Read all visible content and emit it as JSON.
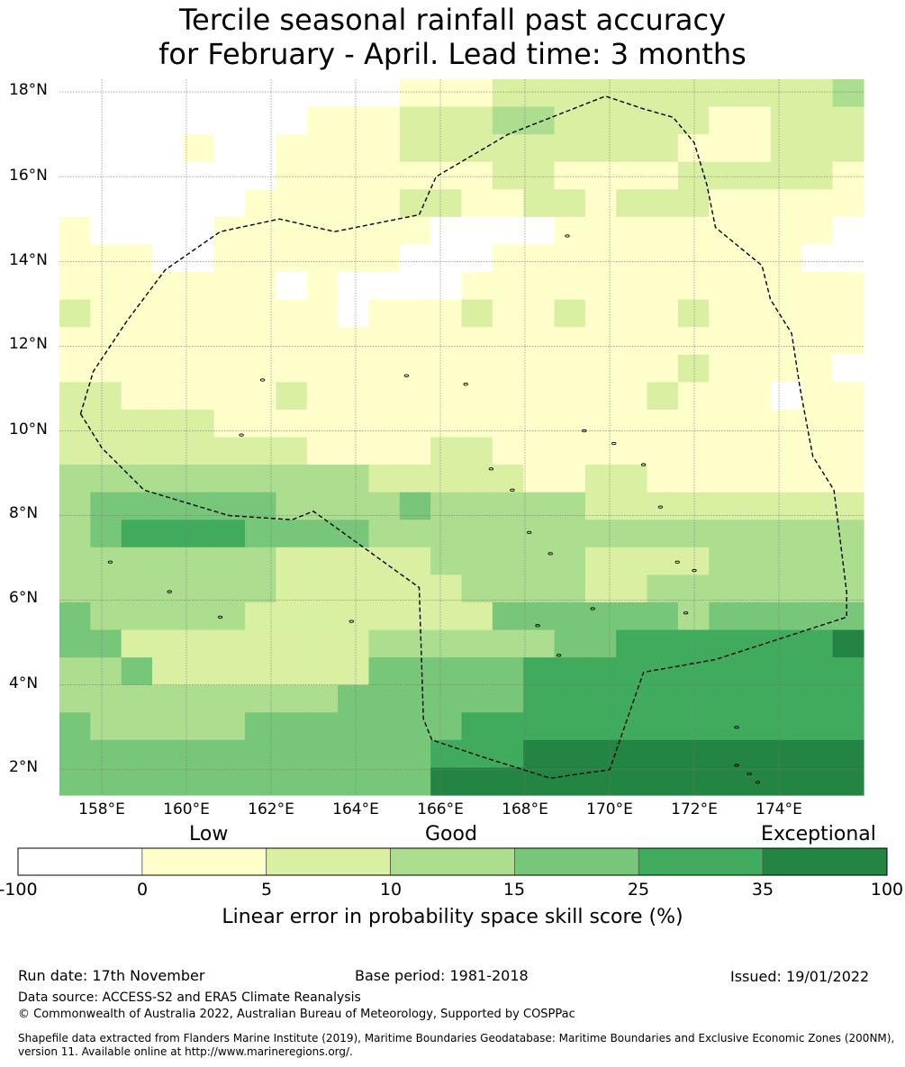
{
  "title": {
    "line1": "Tercile seasonal rainfall past accuracy",
    "line2": "for February - April. Lead time: 3 months"
  },
  "map": {
    "lat_labels": [
      "18°N",
      "16°N",
      "14°N",
      "12°N",
      "10°N",
      "8°N",
      "6°N",
      "4°N",
      "2°N"
    ],
    "lon_labels": [
      "158°E",
      "160°E",
      "162°E",
      "164°E",
      "166°E",
      "168°E",
      "170°E",
      "172°E",
      "174°E"
    ],
    "lon_range": [
      157.0,
      176.0
    ],
    "lat_range": [
      1.4,
      18.3
    ],
    "grid_rows_description": "skill category index per 0.55° cell, top row = north",
    "skill_grid": [
      "00000000000111222222222223",
      "00000000111222332222211222",
      "00001001111222222222111222",
      "00000001111111221111222221",
      "00000011111221122122211111",
      "10000111111100001111111110",
      "11100111111000111111111100",
      "11111110100001111111111111",
      "21111111101112112111211111",
      "11111111111111111111111111",
      "11111111111111111111211110",
      "22111112111111111112111011",
      "22222111111111111111111111",
      "22222222111122111111111111",
      "33333333332222211221111111",
      "34444443333433333222222222",
      "34555544443333333333333333",
      "33333332222233333222233333",
      "33333332222223333223333333",
      "43333322222222444444344444",
      "44222222223333334455555556",
      "33422222224444455555555555",
      "33333333344444455555555555",
      "43333344444445555555555555",
      "44444444444455566666666666",
      "44444444444466666666666666"
    ],
    "eez_outline": [
      [
        157.5,
        10.4
      ],
      [
        158.0,
        9.6
      ],
      [
        159.0,
        8.6
      ],
      [
        161.0,
        8.0
      ],
      [
        162.5,
        7.9
      ],
      [
        163.0,
        8.1
      ],
      [
        165.5,
        6.3
      ],
      [
        165.6,
        3.2
      ],
      [
        165.8,
        2.7
      ],
      [
        167.0,
        2.3
      ],
      [
        168.6,
        1.8
      ],
      [
        170.0,
        2.0
      ],
      [
        170.8,
        4.3
      ],
      [
        172.5,
        4.6
      ],
      [
        175.6,
        5.6
      ],
      [
        175.6,
        6.2
      ],
      [
        175.3,
        8.6
      ],
      [
        174.8,
        9.4
      ],
      [
        174.5,
        11.0
      ],
      [
        174.3,
        12.3
      ],
      [
        173.8,
        13.1
      ],
      [
        173.6,
        13.9
      ],
      [
        172.5,
        14.8
      ],
      [
        172.3,
        15.8
      ],
      [
        172.0,
        16.8
      ],
      [
        171.5,
        17.4
      ],
      [
        170.8,
        17.6
      ],
      [
        169.9,
        17.9
      ],
      [
        167.6,
        17.0
      ],
      [
        165.9,
        16.0
      ],
      [
        165.5,
        15.1
      ],
      [
        164.5,
        14.9
      ],
      [
        163.5,
        14.7
      ],
      [
        162.2,
        15.0
      ],
      [
        160.8,
        14.7
      ],
      [
        159.5,
        13.8
      ],
      [
        158.6,
        12.6
      ],
      [
        157.8,
        11.4
      ],
      [
        157.5,
        10.4
      ]
    ],
    "colors": [
      "#ffffff",
      "#ffffcc",
      "#d9f0a3",
      "#addd8e",
      "#78c679",
      "#41ab5d",
      "#238443"
    ]
  },
  "colorbar": {
    "category_labels": [
      "Low",
      "Good",
      "Exceptional"
    ],
    "ticks": [
      "-100",
      "0",
      "5",
      "10",
      "15",
      "25",
      "35",
      "100"
    ],
    "title": "Linear error in probability space skill score (%)"
  },
  "footer": {
    "run_date": "Run date: 17th November",
    "base_period": "Base period: 1981-2018",
    "issued": "Issued: 19/01/2022",
    "data_source": "Data source: ACCESS-S2 and ERA5 Climate Reanalysis",
    "copyright": "© Commonwealth of Australia 2022, Australian Bureau of Meteorology, Supported by COSPPac",
    "shapefile_line1": "Shapefile data extracted from Flanders Marine Institute (2019), Maritime Boundaries Geodatabase: Maritime Boundaries and Exclusive Economic Zones (200NM),",
    "shapefile_line2": "version 11. Available online at http://www.marineregions.org/."
  }
}
